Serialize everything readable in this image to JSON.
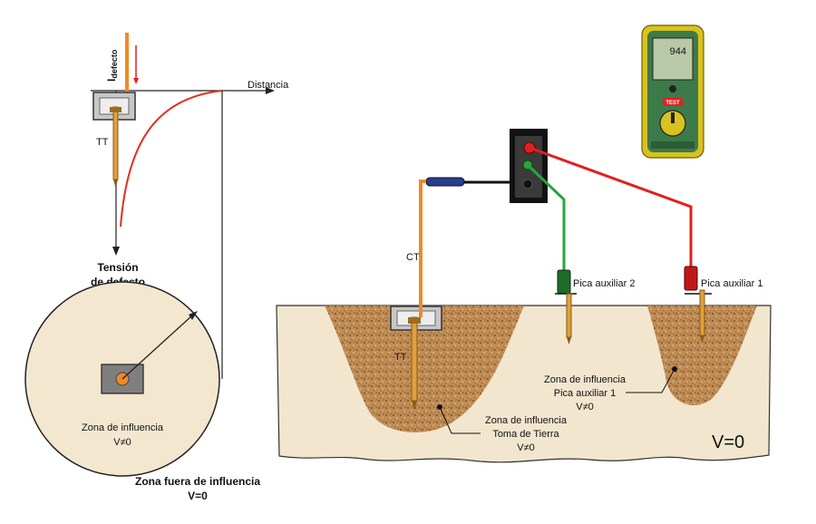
{
  "left_diagram": {
    "current_label_main": "I",
    "current_label_sub": "defecto",
    "axis_label": "Distancia",
    "electrode_label": "TT",
    "voltage_title_line1": "Tensión",
    "voltage_title_line2": "de defecto",
    "inner_zone_line1": "Zona de influencia",
    "inner_zone_line2": "V≠0",
    "outer_zone_line1": "Zona fuera de influencia",
    "outer_zone_line2": "V=0"
  },
  "right_diagram": {
    "cable_label": "CT",
    "electrode_label": "TT",
    "probe2_label": "Pica auxiliar 2",
    "probe1_label": "Pica auxiliar 1",
    "zone_probe1_line1": "Zona de influencia",
    "zone_probe1_line2": "Pica auxiliar 1",
    "zone_probe1_line3": "V≠0",
    "zone_ground_line1": "Zona de influencia",
    "zone_ground_line2": "Toma de Tierra",
    "zone_ground_line3": "V≠0",
    "far_zone_label": "V=0"
  },
  "meter": {
    "display_value": "944",
    "test_button_label": "TEST"
  },
  "colors": {
    "orange_wire": "#f08a24",
    "red_wire": "#e02020",
    "green_wire": "#2aa53a",
    "soil": "#f2e6cf",
    "cone": "#b5834c",
    "meter_green": "#3d7a4a",
    "meter_yellow": "#d9c21e"
  }
}
